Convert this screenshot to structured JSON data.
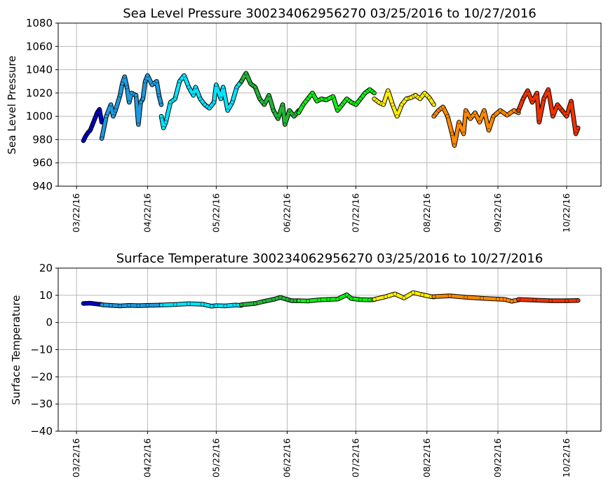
{
  "chart_data": [
    {
      "type": "scatter",
      "title": "Sea Level Pressure 300234062956270  03/25/2016 to 10/27/2016",
      "xlabel": "",
      "ylabel": "Sea Level Pressure",
      "ylim": [
        940,
        1080
      ],
      "yticks": [
        940,
        960,
        980,
        1000,
        1020,
        1040,
        1060,
        1080
      ],
      "xlim": [
        "03/14/16",
        "11/06/16"
      ],
      "xticks": [
        "03/22/16",
        "04/22/16",
        "05/22/16",
        "06/22/16",
        "07/22/16",
        "08/22/16",
        "09/22/16",
        "10/22/16"
      ],
      "grid": true,
      "legend": "none",
      "segments": [
        {
          "color": "#0000cc",
          "points": [
            [
              "03/25/16",
              979
            ],
            [
              "03/26/16",
              983
            ],
            [
              "03/27/16",
              986
            ],
            [
              "03/28/16",
              988
            ],
            [
              "03/29/16",
              993
            ],
            [
              "03/30/16",
              998
            ],
            [
              "03/31/16",
              1003
            ],
            [
              "04/01/16",
              1006
            ],
            [
              "04/02/16",
              995
            ]
          ]
        },
        {
          "color": "#1f9ae0",
          "points": [
            [
              "04/02/16",
              981
            ],
            [
              "04/04/16",
              1000
            ],
            [
              "04/06/16",
              1010
            ],
            [
              "04/07/16",
              1000
            ],
            [
              "04/08/16",
              1005
            ],
            [
              "04/10/16",
              1018
            ],
            [
              "04/11/16",
              1028
            ],
            [
              "04/12/16",
              1034
            ],
            [
              "04/13/16",
              1025
            ],
            [
              "04/14/16",
              1012
            ],
            [
              "04/15/16",
              1020
            ],
            [
              "04/17/16",
              1018
            ],
            [
              "04/18/16",
              993
            ],
            [
              "04/19/16",
              1012
            ],
            [
              "04/20/16",
              1015
            ],
            [
              "04/21/16",
              1030
            ],
            [
              "04/22/16",
              1035
            ],
            [
              "04/24/16",
              1027
            ],
            [
              "04/26/16",
              1030
            ],
            [
              "04/27/16",
              1018
            ],
            [
              "04/28/16",
              1010
            ]
          ]
        },
        {
          "color": "#00e5ff",
          "points": [
            [
              "04/28/16",
              1000
            ],
            [
              "04/29/16",
              990
            ],
            [
              "04/30/16",
              995
            ],
            [
              "05/02/16",
              1012
            ],
            [
              "05/04/16",
              1015
            ],
            [
              "05/06/16",
              1030
            ],
            [
              "05/08/16",
              1035
            ],
            [
              "05/10/16",
              1025
            ],
            [
              "05/12/16",
              1018
            ],
            [
              "05/13/16",
              1025
            ],
            [
              "05/15/16",
              1015
            ],
            [
              "05/17/16",
              1010
            ],
            [
              "05/19/16",
              1007
            ],
            [
              "05/21/16",
              1012
            ],
            [
              "05/22/16",
              1027
            ],
            [
              "05/24/16",
              1015
            ],
            [
              "05/25/16",
              1025
            ],
            [
              "05/27/16",
              1005
            ],
            [
              "05/29/16",
              1012
            ],
            [
              "05/31/16",
              1025
            ],
            [
              "06/02/16",
              1030
            ]
          ]
        },
        {
          "color": "#22b535",
          "points": [
            [
              "06/02/16",
              1030
            ],
            [
              "06/04/16",
              1037
            ],
            [
              "06/06/16",
              1028
            ],
            [
              "06/08/16",
              1025
            ],
            [
              "06/10/16",
              1015
            ],
            [
              "06/12/16",
              1010
            ],
            [
              "06/14/16",
              1018
            ],
            [
              "06/16/16",
              1005
            ],
            [
              "06/18/16",
              998
            ],
            [
              "06/20/16",
              1010
            ],
            [
              "06/21/16",
              993
            ],
            [
              "06/23/16",
              1005
            ],
            [
              "06/25/16",
              1000
            ],
            [
              "06/27/16",
              1005
            ]
          ]
        },
        {
          "color": "#11ee11",
          "points": [
            [
              "06/27/16",
              1003
            ],
            [
              "06/29/16",
              1010
            ],
            [
              "07/01/16",
              1015
            ],
            [
              "07/03/16",
              1020
            ],
            [
              "07/05/16",
              1013
            ],
            [
              "07/07/16",
              1015
            ],
            [
              "07/09/16",
              1014
            ],
            [
              "07/12/16",
              1017
            ],
            [
              "07/14/16",
              1005
            ],
            [
              "07/16/16",
              1010
            ],
            [
              "07/18/16",
              1015
            ],
            [
              "07/20/16",
              1012
            ],
            [
              "07/22/16",
              1010
            ],
            [
              "07/24/16",
              1015
            ],
            [
              "07/26/16",
              1020
            ],
            [
              "07/28/16",
              1023
            ],
            [
              "07/30/16",
              1020
            ]
          ]
        },
        {
          "color": "#ffee00",
          "points": [
            [
              "07/30/16",
              1015
            ],
            [
              "08/01/16",
              1012
            ],
            [
              "08/03/16",
              1010
            ],
            [
              "08/05/16",
              1022
            ],
            [
              "08/07/16",
              1010
            ],
            [
              "08/09/16",
              1000
            ],
            [
              "08/11/16",
              1010
            ],
            [
              "08/13/16",
              1015
            ],
            [
              "08/15/16",
              1016
            ],
            [
              "08/17/16",
              1018
            ],
            [
              "08/19/16",
              1015
            ],
            [
              "08/21/16",
              1020
            ],
            [
              "08/23/16",
              1016
            ],
            [
              "08/25/16",
              1010
            ]
          ]
        },
        {
          "color": "#ff8800",
          "points": [
            [
              "08/25/16",
              1000
            ],
            [
              "08/27/16",
              1005
            ],
            [
              "08/29/16",
              1008
            ],
            [
              "08/31/16",
              1000
            ],
            [
              "09/02/16",
              985
            ],
            [
              "09/03/16",
              975
            ],
            [
              "09/05/16",
              995
            ],
            [
              "09/07/16",
              985
            ],
            [
              "09/08/16",
              1005
            ],
            [
              "09/10/16",
              998
            ],
            [
              "09/12/16",
              1003
            ],
            [
              "09/14/16",
              995
            ],
            [
              "09/16/16",
              1005
            ],
            [
              "09/18/16",
              988
            ],
            [
              "09/20/16",
              1000
            ],
            [
              "09/23/16",
              1005
            ],
            [
              "09/26/16",
              1001
            ],
            [
              "09/29/16",
              1005
            ],
            [
              "10/01/16",
              1003
            ]
          ]
        },
        {
          "color": "#ee3300",
          "points": [
            [
              "10/01/16",
              1005
            ],
            [
              "10/03/16",
              1015
            ],
            [
              "10/05/16",
              1022
            ],
            [
              "10/07/16",
              1012
            ],
            [
              "10/09/16",
              1020
            ],
            [
              "10/10/16",
              995
            ],
            [
              "10/12/16",
              1015
            ],
            [
              "10/14/16",
              1023
            ],
            [
              "10/16/16",
              1000
            ],
            [
              "10/18/16",
              1010
            ],
            [
              "10/20/16",
              1005
            ],
            [
              "10/22/16",
              1000
            ],
            [
              "10/24/16",
              1013
            ],
            [
              "10/26/16",
              985
            ],
            [
              "10/27/16",
              990
            ]
          ]
        }
      ]
    },
    {
      "type": "scatter",
      "title": "Surface Temperature 300234062956270  03/25/2016 to 10/27/2016",
      "xlabel": "",
      "ylabel": "Surface Temperature",
      "ylim": [
        -40,
        20
      ],
      "yticks": [
        -40,
        -30,
        -20,
        -10,
        0,
        10,
        20
      ],
      "ytick_labels": [
        "−40",
        "−30",
        "−20",
        "−10",
        "0",
        "10",
        "20"
      ],
      "xlim": [
        "03/14/16",
        "11/06/16"
      ],
      "xticks": [
        "03/22/16",
        "04/22/16",
        "05/22/16",
        "06/22/16",
        "07/22/16",
        "08/22/16",
        "09/22/16",
        "10/22/16"
      ],
      "grid": true,
      "legend": "none",
      "segments": [
        {
          "color": "#0000cc",
          "points": [
            [
              "03/25/16",
              7.0
            ],
            [
              "03/28/16",
              7.1
            ],
            [
              "03/31/16",
              6.8
            ],
            [
              "04/02/16",
              6.6
            ]
          ]
        },
        {
          "color": "#1f9ae0",
          "points": [
            [
              "04/02/16",
              6.5
            ],
            [
              "04/06/16",
              6.3
            ],
            [
              "04/10/16",
              6.1
            ],
            [
              "04/14/16",
              6.3
            ],
            [
              "04/18/16",
              6.2
            ],
            [
              "04/22/16",
              6.3
            ],
            [
              "04/28/16",
              6.4
            ]
          ]
        },
        {
          "color": "#00e5ff",
          "points": [
            [
              "04/28/16",
              6.4
            ],
            [
              "05/04/16",
              6.6
            ],
            [
              "05/10/16",
              6.9
            ],
            [
              "05/16/16",
              6.7
            ],
            [
              "05/20/16",
              6.0
            ],
            [
              "05/22/16",
              6.2
            ],
            [
              "05/26/16",
              6.1
            ],
            [
              "05/30/16",
              6.4
            ],
            [
              "06/02/16",
              6.3
            ]
          ]
        },
        {
          "color": "#22b535",
          "points": [
            [
              "06/02/16",
              6.5
            ],
            [
              "06/08/16",
              7.0
            ],
            [
              "06/12/16",
              7.8
            ],
            [
              "06/16/16",
              8.5
            ],
            [
              "06/19/16",
              9.2
            ],
            [
              "06/22/16",
              8.5
            ],
            [
              "06/24/16",
              8.0
            ],
            [
              "06/27/16",
              8.0
            ]
          ]
        },
        {
          "color": "#11ee11",
          "points": [
            [
              "06/27/16",
              8.0
            ],
            [
              "07/01/16",
              7.9
            ],
            [
              "07/06/16",
              8.3
            ],
            [
              "07/10/16",
              8.5
            ],
            [
              "07/14/16",
              8.6
            ],
            [
              "07/18/16",
              10.2
            ],
            [
              "07/20/16",
              8.8
            ],
            [
              "07/24/16",
              8.4
            ],
            [
              "07/28/16",
              8.3
            ],
            [
              "07/30/16",
              8.4
            ]
          ]
        },
        {
          "color": "#ffee00",
          "points": [
            [
              "07/30/16",
              8.5
            ],
            [
              "08/04/16",
              9.5
            ],
            [
              "08/08/16",
              10.5
            ],
            [
              "08/12/16",
              9.0
            ],
            [
              "08/16/16",
              11.0
            ],
            [
              "08/20/16",
              10.2
            ],
            [
              "08/24/16",
              9.5
            ],
            [
              "08/25/16",
              9.4
            ]
          ]
        },
        {
          "color": "#ff8800",
          "points": [
            [
              "08/25/16",
              9.5
            ],
            [
              "09/01/16",
              9.8
            ],
            [
              "09/08/16",
              9.3
            ],
            [
              "09/15/16",
              8.9
            ],
            [
              "09/22/16",
              8.6
            ],
            [
              "09/25/16",
              8.5
            ],
            [
              "09/28/16",
              7.8
            ],
            [
              "10/01/16",
              8.3
            ]
          ]
        },
        {
          "color": "#ee3300",
          "points": [
            [
              "10/01/16",
              8.5
            ],
            [
              "10/08/16",
              8.2
            ],
            [
              "10/15/16",
              8.0
            ],
            [
              "10/22/16",
              8.0
            ],
            [
              "10/27/16",
              8.1
            ]
          ]
        }
      ]
    }
  ]
}
